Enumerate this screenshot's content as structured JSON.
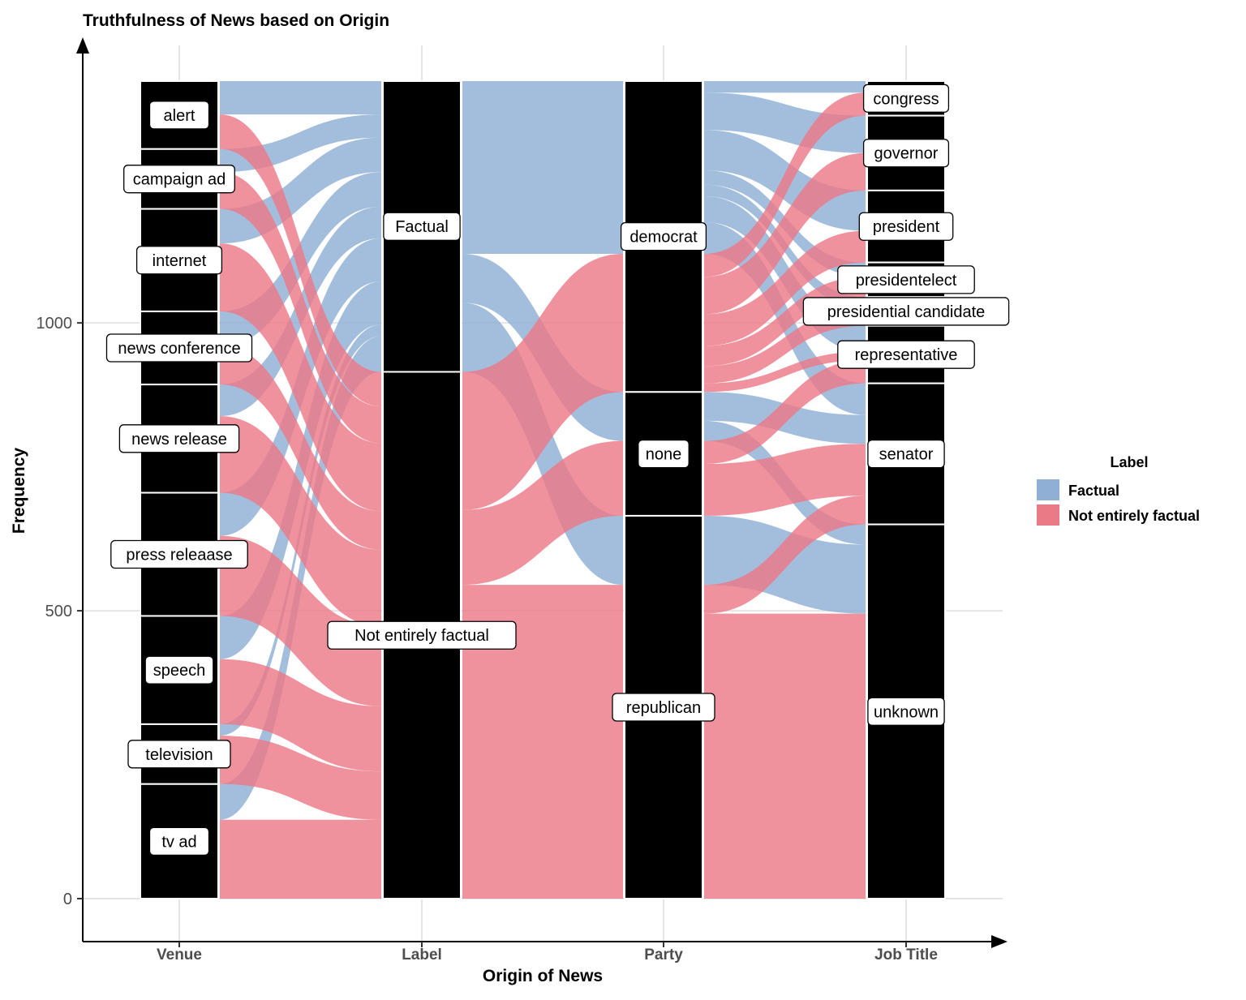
{
  "chart_data": {
    "type": "alluvial",
    "title": "Truthfulness of News based on Origin",
    "xlabel": "Origin of News",
    "ylabel": "Frequency",
    "ylim": [
      0,
      1420
    ],
    "y_ticks": [
      0,
      500,
      1000
    ],
    "grid": true,
    "legend_position": "right",
    "axes": [
      "Venue",
      "Label",
      "Party",
      "Job Title"
    ],
    "legend": {
      "title": "Label",
      "entries": [
        {
          "name": "Factual",
          "color": "#8FB0D4"
        },
        {
          "name": "Not entirely factual",
          "color": "#EB7A87"
        }
      ]
    },
    "strata": {
      "Venue": [
        {
          "name": "alert",
          "value": 118
        },
        {
          "name": "campaign ad",
          "value": 104
        },
        {
          "name": "internet",
          "value": 178
        },
        {
          "name": "news conference",
          "value": 127
        },
        {
          "name": "news release",
          "value": 188
        },
        {
          "name": "press releaase",
          "value": 214
        },
        {
          "name": "speech",
          "value": 188
        },
        {
          "name": "television",
          "value": 104
        },
        {
          "name": "tv ad",
          "value": 199
        }
      ],
      "Label": [
        {
          "name": "Factual",
          "value": 505
        },
        {
          "name": "Not entirely factual",
          "value": 915
        }
      ],
      "Party": [
        {
          "name": "democrat",
          "value": 540
        },
        {
          "name": "none",
          "value": 215
        },
        {
          "name": "republican",
          "value": 665
        }
      ],
      "Job Title": [
        {
          "name": "congress",
          "value": 60
        },
        {
          "name": "governor",
          "value": 130
        },
        {
          "name": "president",
          "value": 125
        },
        {
          "name": "presidentelect",
          "value": 60
        },
        {
          "name": "presidential candidate",
          "value": 50
        },
        {
          "name": "representative",
          "value": 100
        },
        {
          "name": "senator",
          "value": 245
        },
        {
          "name": "unknown",
          "value": 650
        }
      ]
    },
    "flows": {
      "Venue": {
        "alert": [
          58,
          60
        ],
        "campaign ad": [
          40,
          64
        ],
        "internet": [
          60,
          118
        ],
        "news conference": [
          60,
          67
        ],
        "news release": [
          55,
          133
        ],
        "press releaase": [
          75,
          139
        ],
        "speech": [
          75,
          113
        ],
        "television": [
          20,
          84
        ],
        "tv ad": [
          62,
          137
        ]
      },
      "Party": {
        "democrat": [
          300,
          240
        ],
        "none": [
          85,
          130
        ],
        "republican": [
          120,
          545
        ]
      },
      "Job Title": {
        "congress": [
          20,
          40
        ],
        "governor": [
          65,
          65
        ],
        "president": [
          70,
          55
        ],
        "presidentelect": [
          25,
          35
        ],
        "presidential candidate": [
          20,
          30
        ],
        "representative": [
          45,
          55
        ],
        "senator": [
          105,
          140
        ],
        "unknown": [
          155,
          495
        ]
      }
    }
  }
}
